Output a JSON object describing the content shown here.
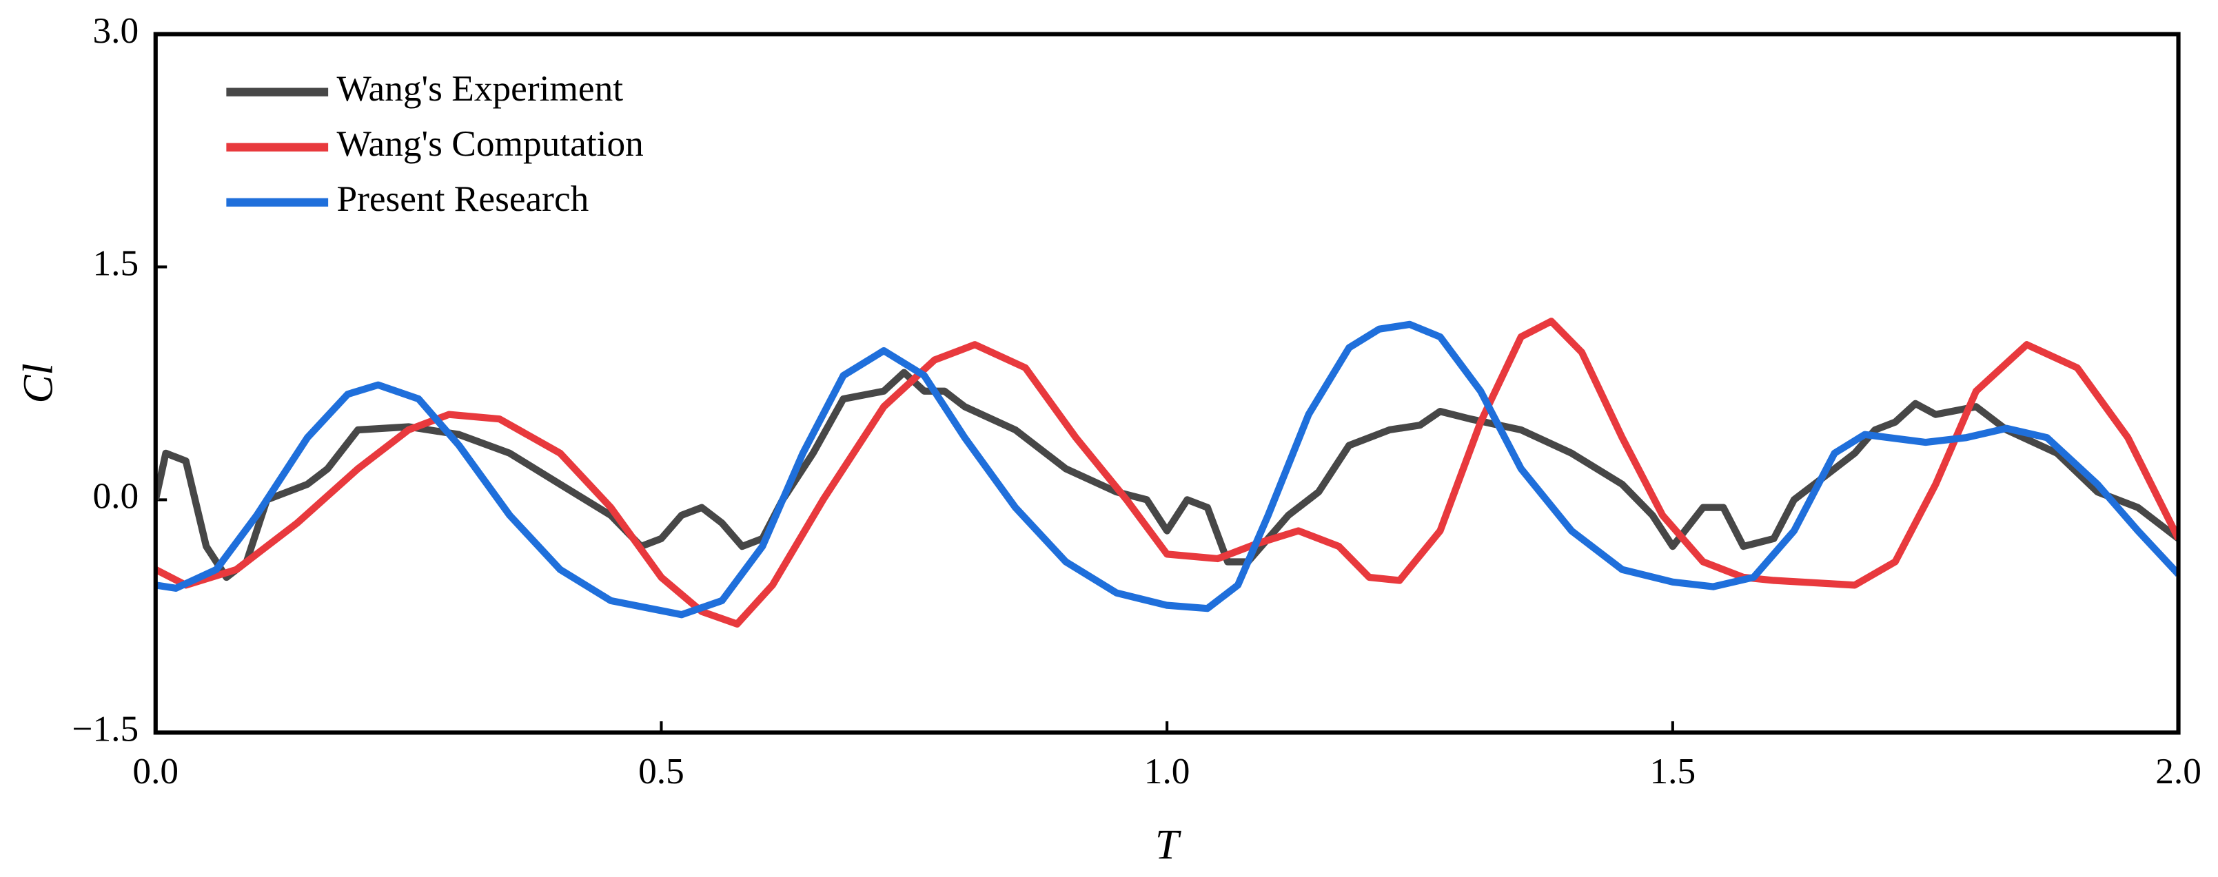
{
  "chart_data": {
    "type": "line",
    "x_label": "T",
    "y_label": "Cl",
    "xlim": [
      0,
      2
    ],
    "ylim": [
      -1.5,
      3
    ],
    "xticks": [
      {
        "value": 0,
        "label": "0.0"
      },
      0.5,
      {
        "value": 1,
        "label": "1.0"
      },
      1.5,
      {
        "value": 2,
        "label": "2.0"
      }
    ],
    "yticks": [
      {
        "value": -1.5,
        "label": "−1.5"
      },
      {
        "value": 0,
        "label": "0.0"
      },
      1.5,
      {
        "value": 3,
        "label": "3.0"
      }
    ],
    "legend": "upper left",
    "series": [
      {
        "name": "Wang's Experiment",
        "color": "#474747",
        "x": [
          0,
          0.01,
          0.03,
          0.05,
          0.07,
          0.09,
          0.11,
          0.15,
          0.17,
          0.2,
          0.25,
          0.3,
          0.35,
          0.4,
          0.45,
          0.48,
          0.5,
          0.52,
          0.54,
          0.56,
          0.58,
          0.6,
          0.62,
          0.65,
          0.68,
          0.72,
          0.74,
          0.76,
          0.78,
          0.8,
          0.85,
          0.9,
          0.95,
          0.98,
          1.0,
          1.02,
          1.04,
          1.06,
          1.08,
          1.12,
          1.15,
          1.18,
          1.22,
          1.25,
          1.27,
          1.3,
          1.35,
          1.4,
          1.45,
          1.48,
          1.5,
          1.53,
          1.55,
          1.57,
          1.6,
          1.62,
          1.65,
          1.68,
          1.7,
          1.72,
          1.74,
          1.76,
          1.8,
          1.83,
          1.88,
          1.92,
          1.96,
          2.0
        ],
        "values": [
          0,
          0.3,
          0.25,
          -0.3,
          -0.5,
          -0.4,
          0,
          0.1,
          0.2,
          0.45,
          0.47,
          0.42,
          0.3,
          0.1,
          -0.1,
          -0.3,
          -0.25,
          -0.1,
          -0.05,
          -0.15,
          -0.3,
          -0.25,
          0,
          0.3,
          0.65,
          0.7,
          0.82,
          0.7,
          0.7,
          0.6,
          0.45,
          0.2,
          0.05,
          0,
          -0.2,
          0,
          -0.05,
          -0.4,
          -0.4,
          -0.1,
          0.05,
          0.35,
          0.45,
          0.48,
          0.57,
          0.52,
          0.45,
          0.3,
          0.1,
          -0.1,
          -0.3,
          -0.05,
          -0.05,
          -0.3,
          -0.25,
          0,
          0.15,
          0.3,
          0.45,
          0.5,
          0.62,
          0.55,
          0.6,
          0.45,
          0.3,
          0.05,
          -0.05,
          -0.25
        ]
      },
      {
        "name": "Wang's Computation",
        "color": "#e8393d",
        "x": [
          0,
          0.03,
          0.08,
          0.14,
          0.2,
          0.25,
          0.29,
          0.34,
          0.4,
          0.45,
          0.5,
          0.54,
          0.575,
          0.61,
          0.66,
          0.72,
          0.77,
          0.81,
          0.86,
          0.91,
          0.96,
          1.0,
          1.05,
          1.09,
          1.13,
          1.17,
          1.2,
          1.23,
          1.27,
          1.31,
          1.35,
          1.38,
          1.41,
          1.45,
          1.49,
          1.53,
          1.57,
          1.6,
          1.68,
          1.72,
          1.76,
          1.8,
          1.85,
          1.9,
          1.95,
          2.0
        ],
        "values": [
          -0.45,
          -0.55,
          -0.45,
          -0.15,
          0.2,
          0.45,
          0.55,
          0.52,
          0.3,
          -0.05,
          -0.5,
          -0.72,
          -0.8,
          -0.55,
          0,
          0.6,
          0.9,
          1.0,
          0.85,
          0.4,
          0,
          -0.35,
          -0.38,
          -0.28,
          -0.2,
          -0.3,
          -0.5,
          -0.52,
          -0.2,
          0.5,
          1.05,
          1.15,
          0.95,
          0.4,
          -0.1,
          -0.4,
          -0.5,
          -0.52,
          -0.55,
          -0.4,
          0.1,
          0.7,
          1.0,
          0.85,
          0.4,
          -0.25
        ]
      },
      {
        "name": "Present Research",
        "color": "#1f6fdb",
        "x": [
          0,
          0.02,
          0.06,
          0.1,
          0.15,
          0.19,
          0.22,
          0.26,
          0.3,
          0.35,
          0.4,
          0.45,
          0.52,
          0.56,
          0.6,
          0.64,
          0.68,
          0.72,
          0.76,
          0.8,
          0.85,
          0.9,
          0.95,
          1.0,
          1.04,
          1.07,
          1.1,
          1.14,
          1.18,
          1.21,
          1.24,
          1.27,
          1.31,
          1.35,
          1.4,
          1.45,
          1.5,
          1.54,
          1.58,
          1.62,
          1.66,
          1.69,
          1.75,
          1.79,
          1.83,
          1.87,
          1.92,
          1.96,
          2.0
        ],
        "values": [
          -0.55,
          -0.57,
          -0.45,
          -0.1,
          0.4,
          0.68,
          0.74,
          0.65,
          0.35,
          -0.1,
          -0.45,
          -0.65,
          -0.74,
          -0.65,
          -0.3,
          0.3,
          0.8,
          0.96,
          0.8,
          0.4,
          -0.05,
          -0.4,
          -0.6,
          -0.68,
          -0.7,
          -0.55,
          -0.1,
          0.55,
          0.98,
          1.1,
          1.13,
          1.05,
          0.7,
          0.2,
          -0.2,
          -0.45,
          -0.53,
          -0.56,
          -0.5,
          -0.2,
          0.3,
          0.42,
          0.37,
          0.4,
          0.46,
          0.4,
          0.1,
          -0.2,
          -0.48
        ]
      }
    ]
  }
}
